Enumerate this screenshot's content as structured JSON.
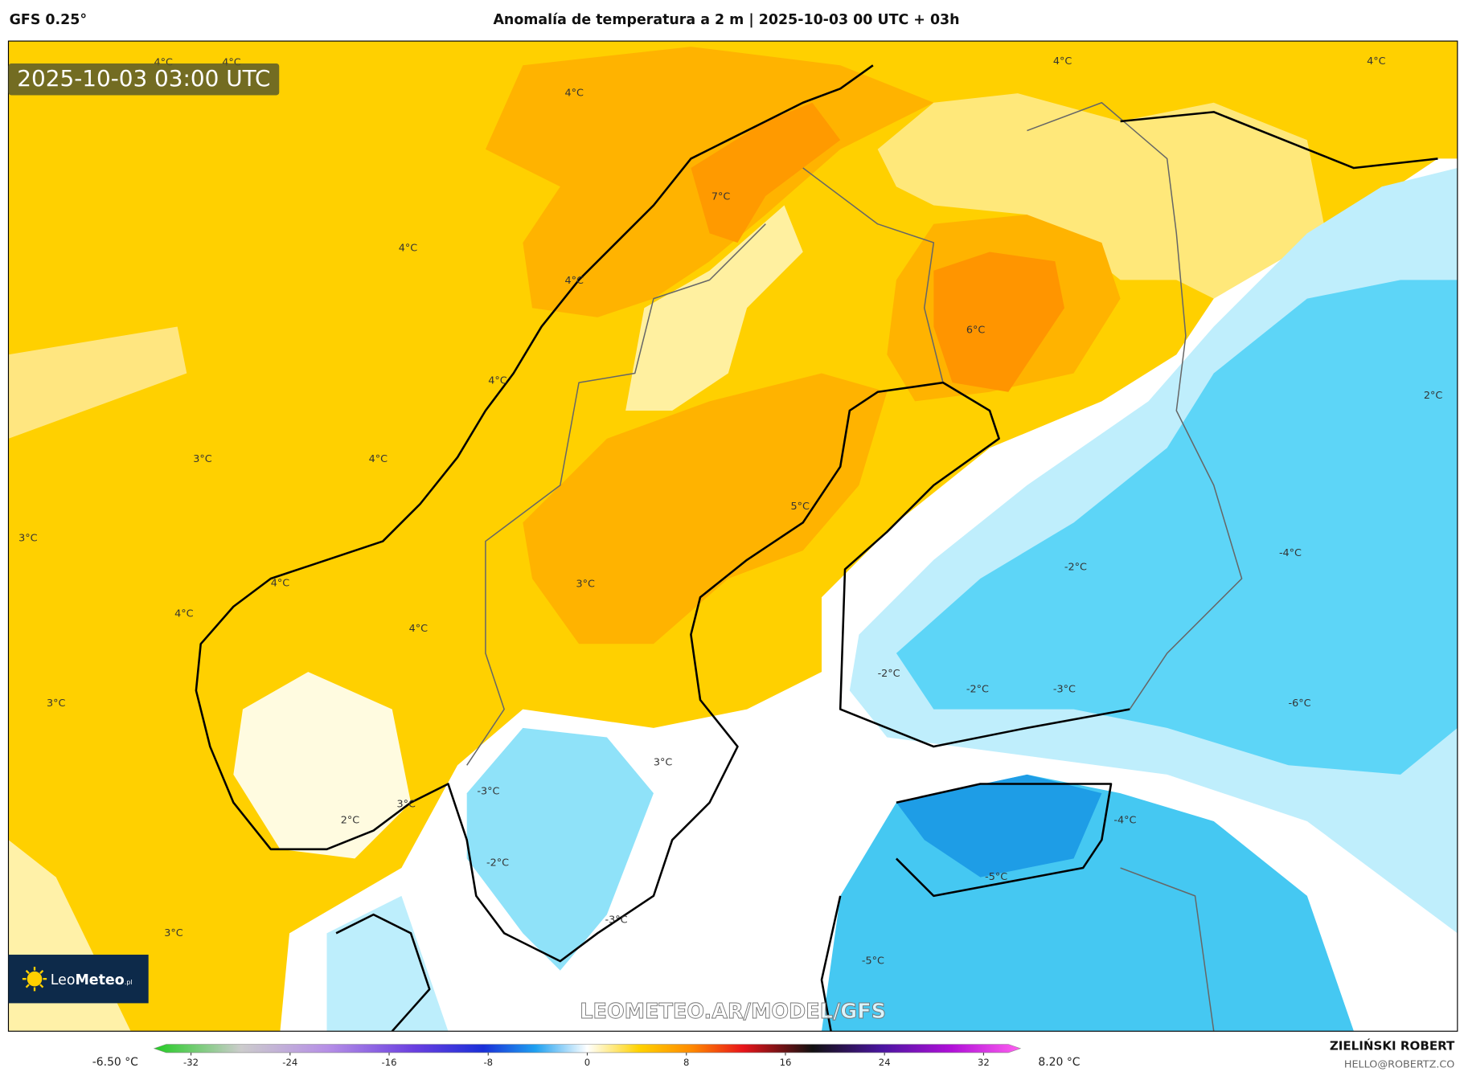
{
  "header": {
    "model": "GFS 0.25°",
    "title": "Anomalía de temperatura a 2 m | 2025-10-03 00 UTC + 03h"
  },
  "map": {
    "valid_time": "2025-10-03 03:00 UTC",
    "contour_labels": [
      "4°C",
      "4°C",
      "4°C",
      "7°C",
      "4°C",
      "4°C",
      "4°C",
      "6°C",
      "4°C",
      "4°C",
      "2°C",
      "3°C",
      "4°C",
      "5°C",
      "3°C",
      "4°C",
      "3°C",
      "4°C",
      "4°C",
      "-2°C",
      "-4°C",
      "-2°C",
      "-2°C",
      "-3°C",
      "-6°C",
      "3°C",
      "3°C",
      "3°C",
      "-3°C",
      "2°C",
      "-4°C",
      "-2°C",
      "-5°C",
      "-3°C",
      "3°C",
      "-5°C"
    ],
    "watermark": "LEOMETEO.AR/MODEL/GFS",
    "logo": {
      "part1": "Leo",
      "part2": "Meteo",
      "suffix": ".pl"
    }
  },
  "colorbar": {
    "min_label": "-6.50 °C",
    "max_label": "8.20 °C",
    "lim": [
      -34,
      34
    ],
    "ticks": [
      -32,
      -24,
      -16,
      -8,
      0,
      8,
      16,
      24,
      32
    ]
  },
  "credits": {
    "author": "ZIELIŃSKI ROBERT",
    "email": "HELLO@ROBERTZ.CO"
  }
}
